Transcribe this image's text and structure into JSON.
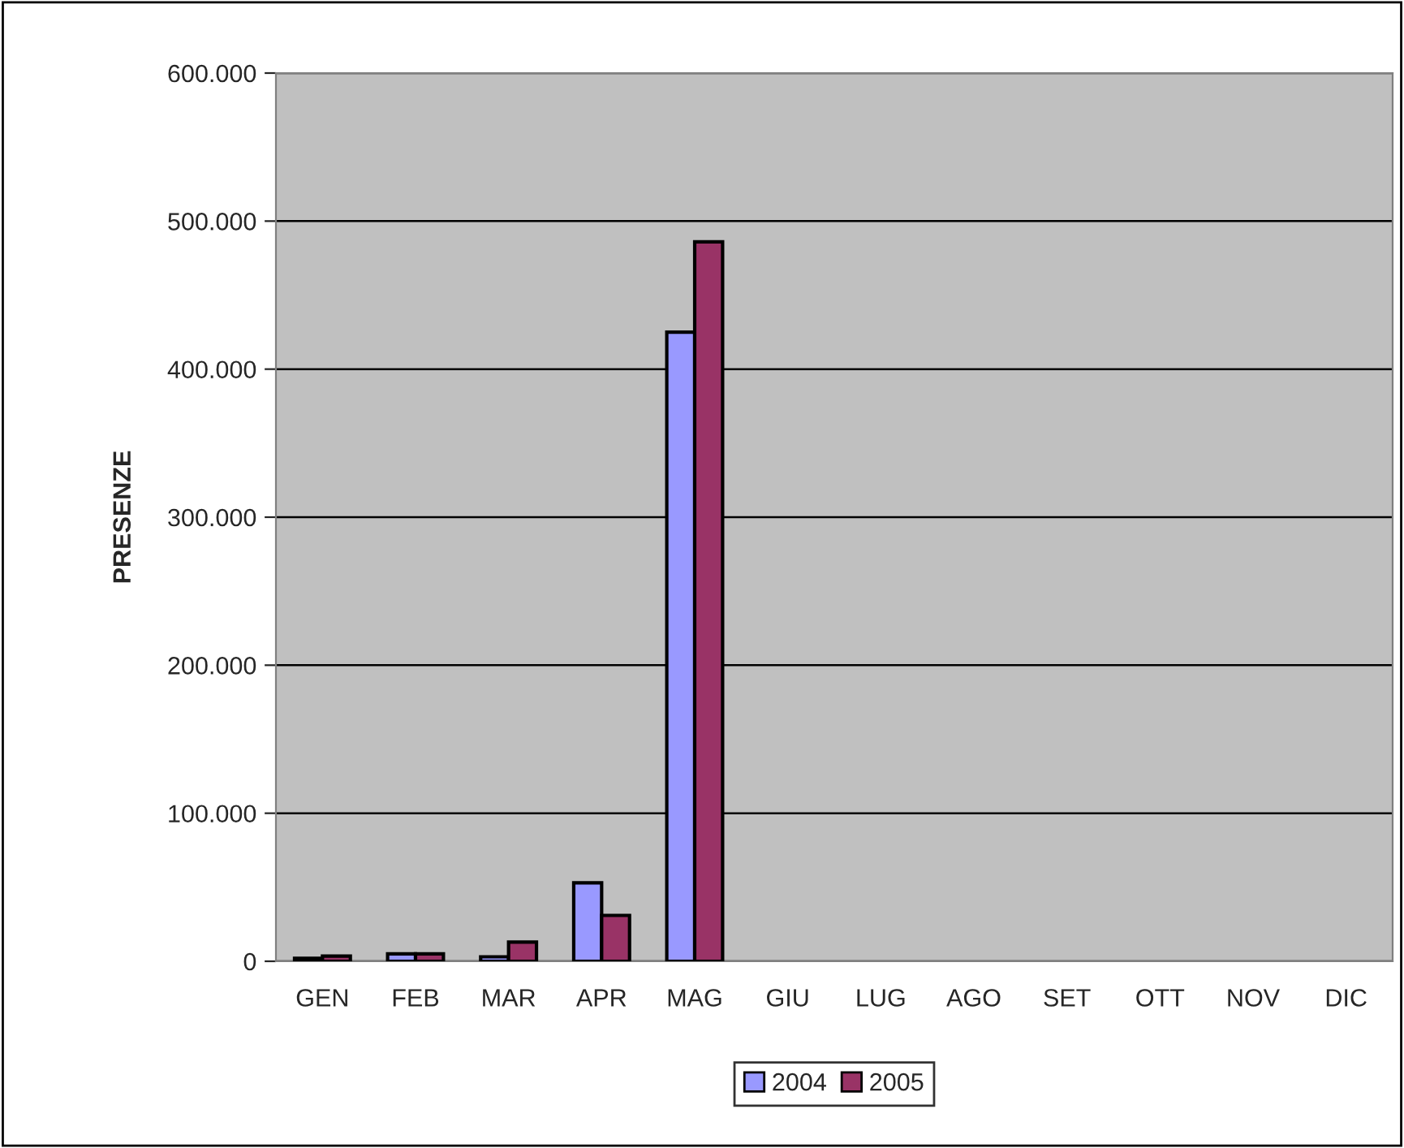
{
  "chart_data": {
    "type": "bar",
    "ylabel": "PRESENZE",
    "categories": [
      "GEN",
      "FEB",
      "MAR",
      "APR",
      "MAG",
      "GIU",
      "LUG",
      "AGO",
      "SET",
      "OTT",
      "NOV",
      "DIC"
    ],
    "series": [
      {
        "name": "2004",
        "color": "#9999ff",
        "values": [
          2000,
          5000,
          3000,
          53000,
          425000,
          null,
          null,
          null,
          null,
          null,
          null,
          null
        ]
      },
      {
        "name": "2005",
        "color": "#993366",
        "values": [
          3500,
          5000,
          13000,
          31000,
          486000,
          null,
          null,
          null,
          null,
          null,
          null,
          null
        ]
      }
    ],
    "ylim": [
      0,
      600000
    ],
    "yticks": [
      {
        "value": 0,
        "label": "0"
      },
      {
        "value": 100000,
        "label": "100.000"
      },
      {
        "value": 200000,
        "label": "200.000"
      },
      {
        "value": 300000,
        "label": "300.000"
      },
      {
        "value": 400000,
        "label": "400.000"
      },
      {
        "value": 500000,
        "label": "500.000"
      },
      {
        "value": 600000,
        "label": "600.000"
      }
    ],
    "grid": "y",
    "legend": "bottom"
  }
}
